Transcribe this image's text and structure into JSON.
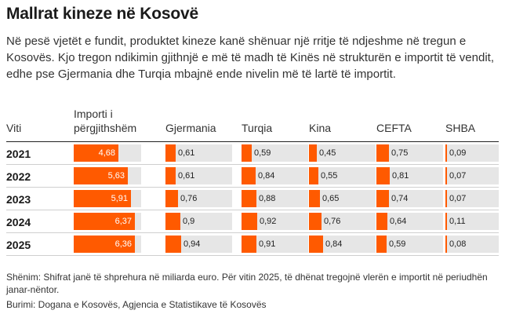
{
  "title": "Mallrat kineze në Kosovë",
  "subtitle": "Në pesë vjetët e fundit, produktet kineze kanë shënuar një rritje të ndjeshme në tregun e Kosovës. Kjo tregon ndikimin gjithnjë e më të madh të Kinës në strukturën e importit të vendit, edhe pse Gjermania dhe Turqia mbajnë ende nivelin më të lartë të importit.",
  "note": "Shënim: Shifrat janë të shprehura në miliarda euro. Për vitin 2025, të dhënat tregojnë vlerën e importit në periudhën janar-nëntor.",
  "source": "Burimi: Dogana e Kosovës, Agjencia e Statistikave të Kosovës",
  "colors": {
    "bar": "#ff5a00",
    "track": "#e6e6e6"
  },
  "chart_data": {
    "type": "table",
    "row_header": "Viti",
    "columns": [
      "Importi i përgjithshëm",
      "Gjermania",
      "Turqia",
      "Kina",
      "CEFTA",
      "SHBA"
    ],
    "rows": [
      {
        "year": "2021",
        "values": [
          4.68,
          0.61,
          0.59,
          0.45,
          0.75,
          0.09
        ],
        "labels": [
          "4,68",
          "0,61",
          "0,59",
          "0,45",
          "0,75",
          "0,09"
        ]
      },
      {
        "year": "2022",
        "values": [
          5.63,
          0.61,
          0.84,
          0.55,
          0.81,
          0.07
        ],
        "labels": [
          "5,63",
          "0,61",
          "0,84",
          "0,55",
          "0,81",
          "0,07"
        ]
      },
      {
        "year": "2023",
        "values": [
          5.91,
          0.76,
          0.88,
          0.65,
          0.74,
          0.07
        ],
        "labels": [
          "5,91",
          "0,76",
          "0,88",
          "0,65",
          "0,74",
          "0,07"
        ]
      },
      {
        "year": "2024",
        "values": [
          6.37,
          0.9,
          0.92,
          0.76,
          0.64,
          0.11
        ],
        "labels": [
          "6,37",
          "0,9",
          "0,92",
          "0,76",
          "0,64",
          "0,11"
        ]
      },
      {
        "year": "2025",
        "values": [
          6.36,
          0.94,
          0.91,
          0.84,
          0.59,
          0.08
        ],
        "labels": [
          "6,36",
          "0,94",
          "0,91",
          "0,84",
          "0,59",
          "0,08"
        ]
      }
    ]
  }
}
